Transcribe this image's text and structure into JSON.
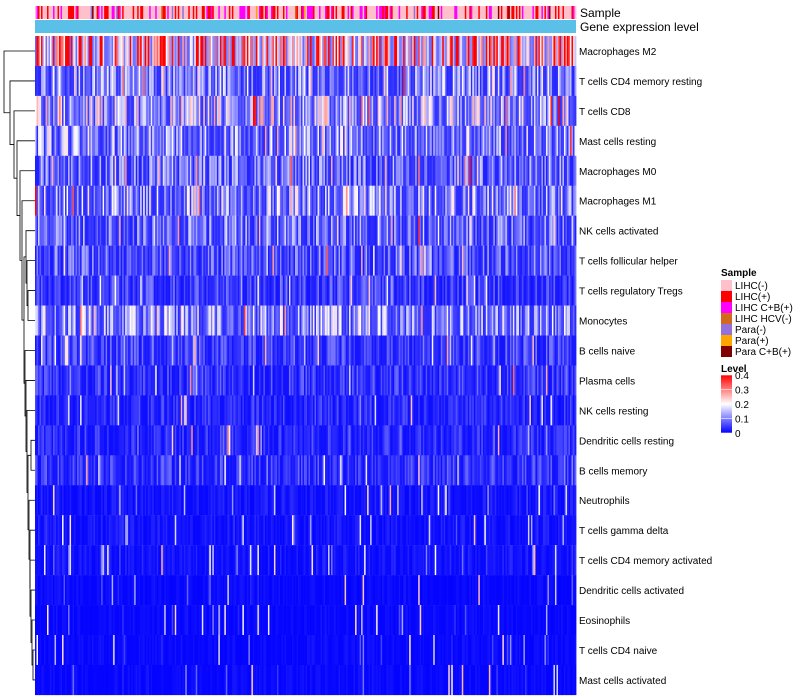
{
  "chart_data": {
    "type": "heatmap",
    "title": "",
    "xlabel": "",
    "ylabel": "",
    "annotation_tracks": [
      "Sample",
      "Gene expression level"
    ],
    "rows": [
      "Macrophages M2",
      "T cells CD4 memory resting",
      "T cells CD8",
      "Mast cells resting",
      "Macrophages M0",
      "Macrophages M1",
      "NK cells activated",
      "T cells follicular helper",
      "T cells regulatory  Tregs",
      "Monocytes",
      "B cells naive",
      "Plasma cells",
      "NK cells resting",
      "Dendritic cells resting",
      "B cells memory",
      "Neutrophils",
      "T cells gamma delta",
      "T cells CD4 memory activated",
      "Dendritic cells activated",
      "Eosinophils",
      "T cells CD4 naive",
      "Mast cells activated"
    ],
    "row_mean_levels": [
      0.32,
      0.12,
      0.16,
      0.13,
      0.1,
      0.13,
      0.1,
      0.08,
      0.06,
      0.13,
      0.06,
      0.05,
      0.04,
      0.04,
      0.05,
      0.02,
      0.02,
      0.02,
      0.01,
      0.01,
      0.01,
      0.01
    ],
    "n_samples": 360,
    "sample_group_proportions": {
      "LIHC(-)": 0.58,
      "LIHC(+)": 0.22,
      "LIHC C+B(+)": 0.16,
      "LIHC HCV(-)": 0.01,
      "Para(-)": 0.01,
      "Para(+)": 0.01,
      "Para C+B(+)": 0.01
    },
    "legend_sample": {
      "title": "Sample",
      "entries": [
        {
          "label": "LIHC(-)",
          "color": "#FFC0CB"
        },
        {
          "label": "LIHC(+)",
          "color": "#FF0000"
        },
        {
          "label": "LIHC C+B(+)",
          "color": "#FF00FF"
        },
        {
          "label": "LIHC HCV(-)",
          "color": "#D2691E"
        },
        {
          "label": "Para(-)",
          "color": "#9370DB"
        },
        {
          "label": "Para(+)",
          "color": "#FFA500"
        },
        {
          "label": "Para C+B(+)",
          "color": "#800000"
        }
      ]
    },
    "legend_level": {
      "title": "Level",
      "ticks": [
        "0.4",
        "0.3",
        "0.2",
        "0.1",
        "0"
      ],
      "tick_values": [
        0.4,
        0.3,
        0.2,
        0.1,
        0
      ],
      "range": [
        0,
        0.4
      ],
      "colors": [
        "#0000FF",
        "#FFFFFF",
        "#FF0000"
      ]
    },
    "expression_track_color": "#5BC0E8",
    "legend_position": "right"
  }
}
